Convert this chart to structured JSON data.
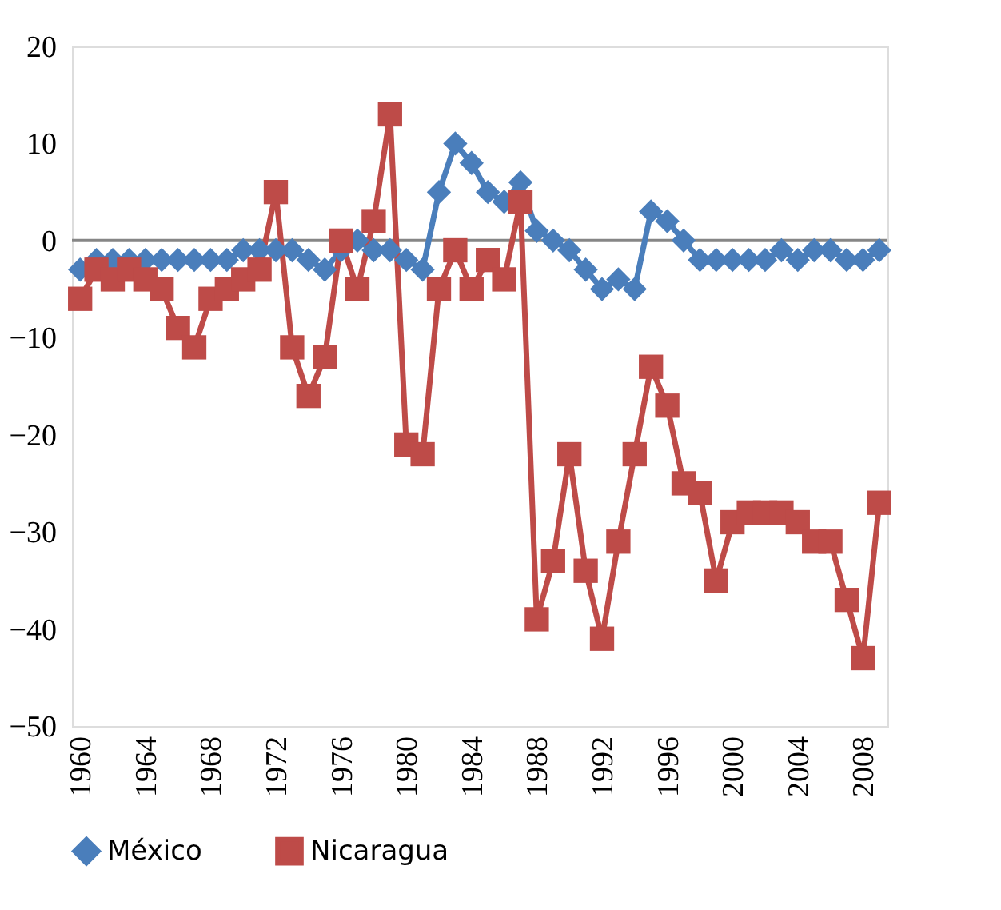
{
  "chart_data": {
    "type": "line",
    "x": [
      1960,
      1961,
      1962,
      1963,
      1964,
      1965,
      1966,
      1967,
      1968,
      1969,
      1970,
      1971,
      1972,
      1973,
      1974,
      1975,
      1976,
      1977,
      1978,
      1979,
      1980,
      1981,
      1982,
      1983,
      1984,
      1985,
      1986,
      1987,
      1988,
      1989,
      1990,
      1991,
      1992,
      1993,
      1994,
      1995,
      1996,
      1997,
      1998,
      1999,
      2000,
      2001,
      2002,
      2003,
      2004,
      2005,
      2006,
      2007,
      2008,
      2009
    ],
    "series": [
      {
        "name": "México",
        "color": "#4a7ebb",
        "marker": "diamond",
        "values": [
          -3,
          -2,
          -2,
          -2,
          -2,
          -2,
          -2,
          -2,
          -2,
          -2,
          -1,
          -1,
          -1,
          -1,
          -2,
          -3,
          -1,
          0,
          -1,
          -1,
          -2,
          -3,
          5,
          10,
          8,
          5,
          4,
          6,
          1,
          0,
          -1,
          -3,
          -5,
          -4,
          -5,
          3,
          2,
          0,
          -2,
          -2,
          -2,
          -2,
          -2,
          -1,
          -2,
          -1,
          -1,
          -2,
          -2,
          -1
        ]
      },
      {
        "name": "Nicaragua",
        "color": "#be4b48",
        "marker": "square",
        "values": [
          -6,
          -3,
          -4,
          -3,
          -4,
          -5,
          -9,
          -11,
          -6,
          -5,
          -4,
          -3,
          5,
          -11,
          -16,
          -12,
          0,
          -5,
          2,
          13,
          -21,
          -22,
          -5,
          -1,
          -5,
          -2,
          -4,
          4,
          -39,
          -33,
          -22,
          -34,
          -41,
          -31,
          -22,
          -13,
          -17,
          -25,
          -26,
          -35,
          -29,
          -28,
          -28,
          -28,
          -29,
          -31,
          -31,
          -37,
          -43,
          -27
        ]
      }
    ],
    "xlim": [
      1959.5,
      2009.5
    ],
    "xticks": [
      1960,
      1964,
      1968,
      1972,
      1976,
      1980,
      1984,
      1988,
      1992,
      1996,
      2000,
      2004,
      2008
    ],
    "ylim": [
      -50,
      20
    ],
    "yticks": [
      -50,
      -40,
      -30,
      -20,
      -10,
      0,
      10,
      20
    ],
    "ref_lines": [
      {
        "axis": "y",
        "value": 0,
        "color": "#868686"
      }
    ],
    "grid": false,
    "legend": "bottom",
    "line_style": "solid"
  }
}
